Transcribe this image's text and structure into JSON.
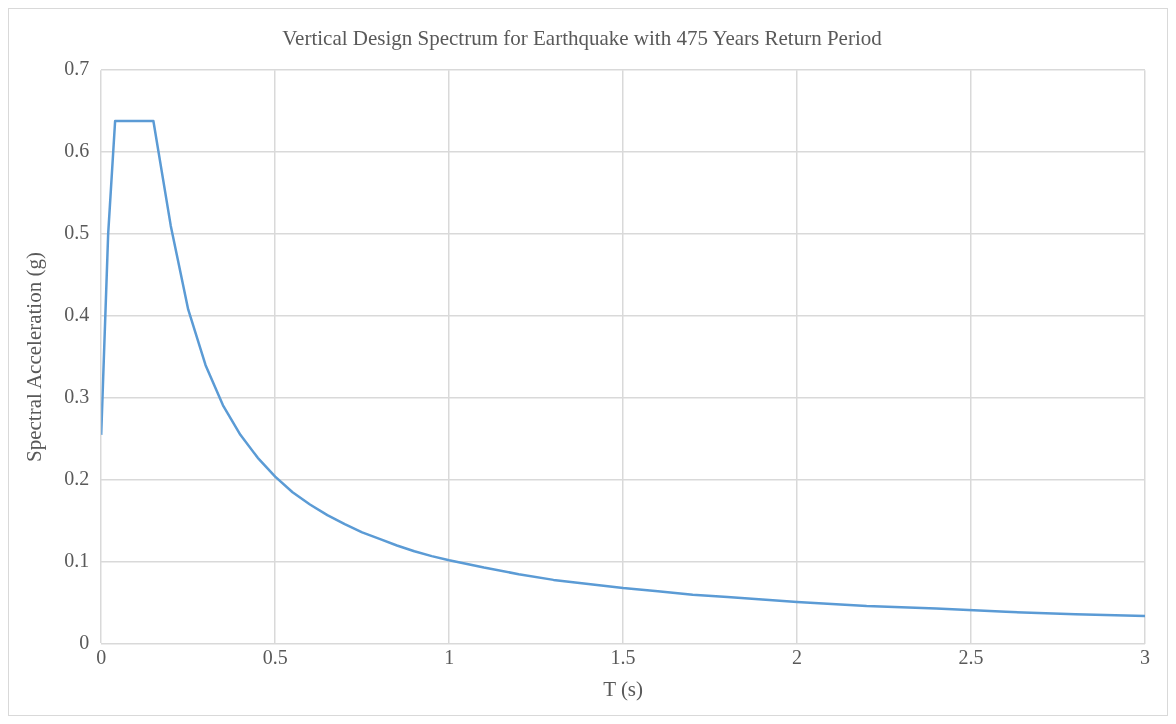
{
  "chart_data": {
    "type": "line",
    "title": "Vertical Design Spectrum for Earthquake with 475 Years Return Period",
    "xlabel": "T (s)",
    "ylabel": "Spectral Acceleration (g)",
    "x": [
      0,
      0.02,
      0.04,
      0.15,
      0.2,
      0.25,
      0.3,
      0.35,
      0.4,
      0.45,
      0.5,
      0.55,
      0.6,
      0.65,
      0.7,
      0.75,
      0.8,
      0.85,
      0.9,
      0.95,
      1,
      1.1,
      1.2,
      1.3,
      1.4,
      1.5,
      1.6,
      1.7,
      1.8,
      1.9,
      2,
      2.2,
      2.4,
      2.6,
      2.8,
      3
    ],
    "series": [
      {
        "color": "#5b9bd5",
        "values": [
          0.255,
          0.5,
          0.638,
          0.638,
          0.51,
          0.408,
          0.34,
          0.291,
          0.255,
          0.227,
          0.204,
          0.185,
          0.17,
          0.157,
          0.146,
          0.136,
          0.128,
          0.12,
          0.113,
          0.107,
          0.102,
          0.093,
          0.085,
          0.078,
          0.073,
          0.068,
          0.064,
          0.06,
          0.057,
          0.054,
          0.051,
          0.046,
          0.043,
          0.039,
          0.036,
          0.034
        ]
      }
    ],
    "xlim": [
      0,
      3
    ],
    "xticks": [
      0,
      0.5,
      1,
      1.5,
      2,
      2.5,
      3
    ],
    "ylim": [
      0,
      0.7
    ],
    "yticks": [
      0,
      0.1,
      0.2,
      0.3,
      0.4,
      0.5,
      0.6,
      0.7
    ],
    "grid": true,
    "legend": false,
    "marker": "none",
    "line_style": "solid"
  }
}
